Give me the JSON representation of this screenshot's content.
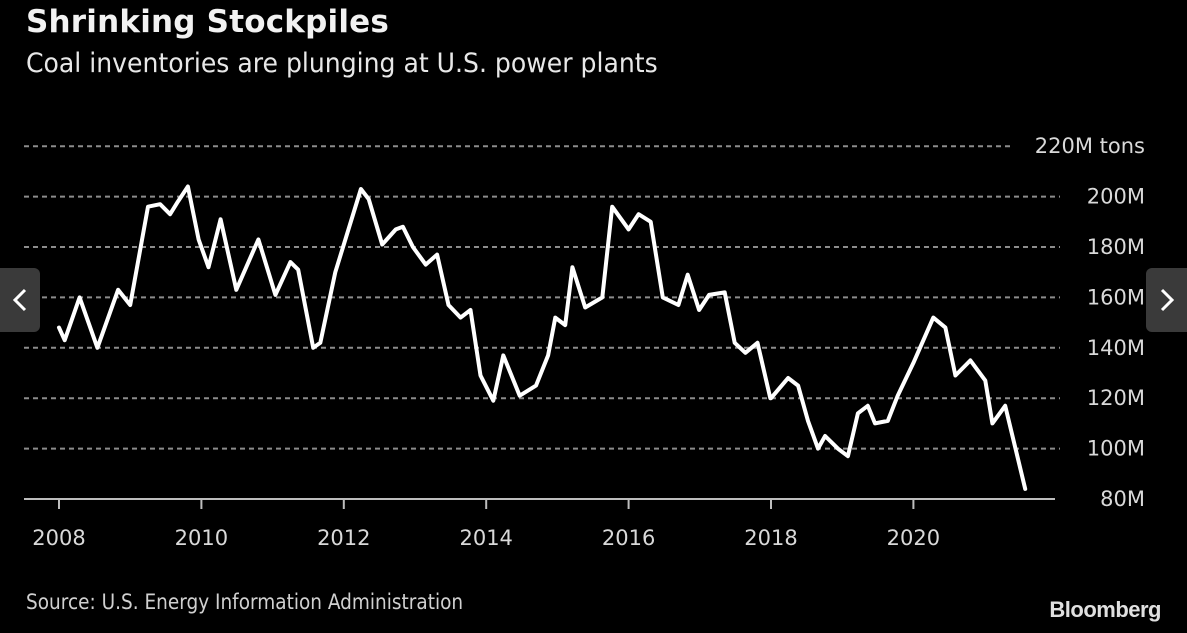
{
  "header": {
    "title": "Shrinking Stockpiles",
    "subtitle": "Coal inventories are plunging at U.S. power plants"
  },
  "footer": {
    "source": "Source: U.S. Energy Information Administration",
    "brand": "Bloomberg"
  },
  "navigation": {
    "prev_icon": "chevron-left-icon",
    "next_icon": "chevron-right-icon"
  },
  "colors": {
    "background": "#000000",
    "line": "#ffffff",
    "grid": "#8c8c8c",
    "axis": "#bdbdbd",
    "nav_button": "#3a3a3a"
  },
  "chart_data": {
    "type": "line",
    "title": "Shrinking Stockpiles",
    "subtitle": "Coal inventories are plunging at U.S. power plants",
    "xlabel": "",
    "ylabel": "",
    "unit": "M tons",
    "xlim": [
      2008,
      2022
    ],
    "ylim": [
      80,
      220
    ],
    "x_ticks": [
      2008,
      2010,
      2012,
      2014,
      2016,
      2018,
      2020
    ],
    "x_tick_labels": [
      "2008",
      "2010",
      "2012",
      "2014",
      "2016",
      "2018",
      "2020"
    ],
    "y_ticks": [
      80,
      100,
      120,
      140,
      160,
      180,
      200,
      220
    ],
    "y_tick_labels": [
      "80M",
      "100M",
      "120M",
      "140M",
      "160M",
      "180M",
      "200M",
      "220M tons"
    ],
    "grid": true,
    "y_axis_side": "right",
    "legend": "none",
    "series": [
      {
        "name": "Coal inventories at U.S. power plants",
        "x": [
          2008.0,
          2008.08,
          2008.29,
          2008.54,
          2008.83,
          2009.0,
          2009.25,
          2009.42,
          2009.56,
          2009.67,
          2009.81,
          2009.96,
          2010.1,
          2010.27,
          2010.49,
          2010.8,
          2011.04,
          2011.25,
          2011.36,
          2011.57,
          2011.67,
          2011.88,
          2012.24,
          2012.35,
          2012.54,
          2012.73,
          2012.83,
          2012.97,
          2013.15,
          2013.31,
          2013.47,
          2013.64,
          2013.78,
          2013.92,
          2014.1,
          2014.24,
          2014.47,
          2014.7,
          2014.87,
          2014.97,
          2015.11,
          2015.21,
          2015.39,
          2015.63,
          2015.77,
          2016.0,
          2016.14,
          2016.31,
          2016.48,
          2016.7,
          2016.83,
          2016.99,
          2017.13,
          2017.35,
          2017.49,
          2017.64,
          2017.81,
          2017.99,
          2018.0,
          2018.24,
          2018.38,
          2018.52,
          2018.66,
          2018.76,
          2018.94,
          2019.08,
          2019.22,
          2019.36,
          2019.46,
          2019.64,
          2019.78,
          2020.0,
          2020.28,
          2020.45,
          2020.59,
          2020.8,
          2021.01,
          2021.11,
          2021.29,
          2021.57
        ],
        "values": [
          148,
          143,
          160,
          140,
          163,
          157,
          196,
          197,
          193,
          198,
          204,
          183,
          172,
          191,
          163,
          183,
          161,
          174,
          171,
          140,
          142,
          170,
          203,
          199,
          181,
          187,
          188,
          180,
          173,
          177,
          157,
          152,
          155,
          129,
          119,
          137,
          121,
          125,
          137,
          152,
          149,
          172,
          156,
          160,
          196,
          187,
          193,
          190,
          160,
          157,
          169,
          155,
          161,
          162,
          142,
          138,
          142,
          120,
          120,
          128,
          125,
          111,
          100,
          105,
          100,
          97,
          114,
          117,
          110,
          111,
          121,
          134,
          152,
          148,
          129,
          135,
          127,
          110,
          117,
          84
        ]
      }
    ]
  }
}
